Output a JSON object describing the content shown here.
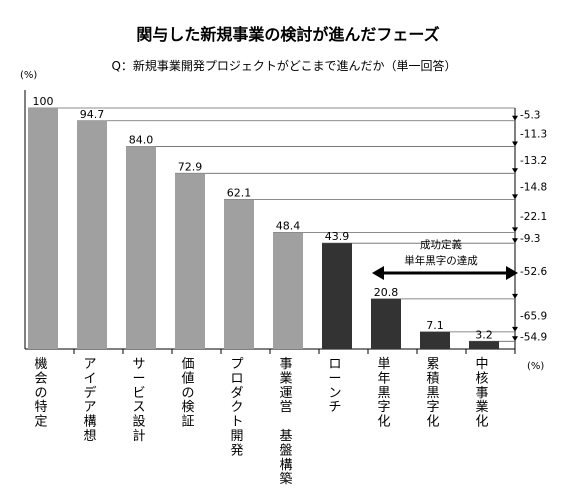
{
  "chart_data": {
    "type": "bar",
    "title": "関与した新規事業の検討が進んだフェーズ",
    "subtitle": "Q：新規事業開発プロジェクトがどこまで進んだか（単一回答）",
    "y_unit_top": "(%)",
    "y_unit_right": "(%)",
    "ylim": [
      0,
      100
    ],
    "categories": [
      "機会の特定",
      "アイデア構想",
      "サービス設計",
      "価値の検証",
      "プロダクト開発",
      "事業運営　基盤構築",
      "ローンチ",
      "単年黒字化",
      "累積黒字化",
      "中核事業化"
    ],
    "values": [
      100,
      94.7,
      84.0,
      72.9,
      62.1,
      48.4,
      43.9,
      20.8,
      7.1,
      3.2
    ],
    "value_labels": [
      "100",
      "94.7",
      "84.0",
      "72.9",
      "62.1",
      "48.4",
      "43.9",
      "20.8",
      "7.1",
      "3.2"
    ],
    "bar_colors": [
      "#a0a0a0",
      "#a0a0a0",
      "#a0a0a0",
      "#a0a0a0",
      "#a0a0a0",
      "#a0a0a0",
      "#333333",
      "#333333",
      "#333333",
      "#333333"
    ],
    "differences": [
      "-5.3",
      "-11.3",
      "-13.2",
      "-14.8",
      "-22.1",
      "-9.3",
      "-52.6",
      "-65.9",
      "-54.9"
    ],
    "annotation": {
      "line1": "成功定義",
      "line2": "単年黒字の達成"
    }
  }
}
